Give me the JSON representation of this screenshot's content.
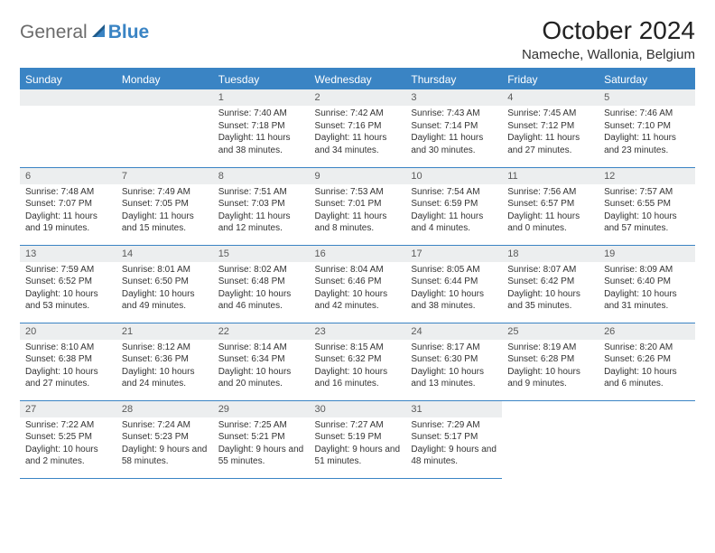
{
  "logo": {
    "general": "General",
    "blue": "Blue"
  },
  "title": "October 2024",
  "location": "Nameche, Wallonia, Belgium",
  "colors": {
    "accent": "#3a84c4",
    "header_text": "#ffffff",
    "daynum_bg": "#eceeef",
    "daynum_text": "#5a5a5a",
    "body_text": "#333333",
    "logo_gray": "#6b6b6b"
  },
  "day_headers": [
    "Sunday",
    "Monday",
    "Tuesday",
    "Wednesday",
    "Thursday",
    "Friday",
    "Saturday"
  ],
  "weeks": [
    [
      {
        "n": "",
        "empty": true
      },
      {
        "n": "",
        "empty": true
      },
      {
        "n": "1",
        "sunrise": "Sunrise: 7:40 AM",
        "sunset": "Sunset: 7:18 PM",
        "daylight": "Daylight: 11 hours and 38 minutes."
      },
      {
        "n": "2",
        "sunrise": "Sunrise: 7:42 AM",
        "sunset": "Sunset: 7:16 PM",
        "daylight": "Daylight: 11 hours and 34 minutes."
      },
      {
        "n": "3",
        "sunrise": "Sunrise: 7:43 AM",
        "sunset": "Sunset: 7:14 PM",
        "daylight": "Daylight: 11 hours and 30 minutes."
      },
      {
        "n": "4",
        "sunrise": "Sunrise: 7:45 AM",
        "sunset": "Sunset: 7:12 PM",
        "daylight": "Daylight: 11 hours and 27 minutes."
      },
      {
        "n": "5",
        "sunrise": "Sunrise: 7:46 AM",
        "sunset": "Sunset: 7:10 PM",
        "daylight": "Daylight: 11 hours and 23 minutes."
      }
    ],
    [
      {
        "n": "6",
        "sunrise": "Sunrise: 7:48 AM",
        "sunset": "Sunset: 7:07 PM",
        "daylight": "Daylight: 11 hours and 19 minutes."
      },
      {
        "n": "7",
        "sunrise": "Sunrise: 7:49 AM",
        "sunset": "Sunset: 7:05 PM",
        "daylight": "Daylight: 11 hours and 15 minutes."
      },
      {
        "n": "8",
        "sunrise": "Sunrise: 7:51 AM",
        "sunset": "Sunset: 7:03 PM",
        "daylight": "Daylight: 11 hours and 12 minutes."
      },
      {
        "n": "9",
        "sunrise": "Sunrise: 7:53 AM",
        "sunset": "Sunset: 7:01 PM",
        "daylight": "Daylight: 11 hours and 8 minutes."
      },
      {
        "n": "10",
        "sunrise": "Sunrise: 7:54 AM",
        "sunset": "Sunset: 6:59 PM",
        "daylight": "Daylight: 11 hours and 4 minutes."
      },
      {
        "n": "11",
        "sunrise": "Sunrise: 7:56 AM",
        "sunset": "Sunset: 6:57 PM",
        "daylight": "Daylight: 11 hours and 0 minutes."
      },
      {
        "n": "12",
        "sunrise": "Sunrise: 7:57 AM",
        "sunset": "Sunset: 6:55 PM",
        "daylight": "Daylight: 10 hours and 57 minutes."
      }
    ],
    [
      {
        "n": "13",
        "sunrise": "Sunrise: 7:59 AM",
        "sunset": "Sunset: 6:52 PM",
        "daylight": "Daylight: 10 hours and 53 minutes."
      },
      {
        "n": "14",
        "sunrise": "Sunrise: 8:01 AM",
        "sunset": "Sunset: 6:50 PM",
        "daylight": "Daylight: 10 hours and 49 minutes."
      },
      {
        "n": "15",
        "sunrise": "Sunrise: 8:02 AM",
        "sunset": "Sunset: 6:48 PM",
        "daylight": "Daylight: 10 hours and 46 minutes."
      },
      {
        "n": "16",
        "sunrise": "Sunrise: 8:04 AM",
        "sunset": "Sunset: 6:46 PM",
        "daylight": "Daylight: 10 hours and 42 minutes."
      },
      {
        "n": "17",
        "sunrise": "Sunrise: 8:05 AM",
        "sunset": "Sunset: 6:44 PM",
        "daylight": "Daylight: 10 hours and 38 minutes."
      },
      {
        "n": "18",
        "sunrise": "Sunrise: 8:07 AM",
        "sunset": "Sunset: 6:42 PM",
        "daylight": "Daylight: 10 hours and 35 minutes."
      },
      {
        "n": "19",
        "sunrise": "Sunrise: 8:09 AM",
        "sunset": "Sunset: 6:40 PM",
        "daylight": "Daylight: 10 hours and 31 minutes."
      }
    ],
    [
      {
        "n": "20",
        "sunrise": "Sunrise: 8:10 AM",
        "sunset": "Sunset: 6:38 PM",
        "daylight": "Daylight: 10 hours and 27 minutes."
      },
      {
        "n": "21",
        "sunrise": "Sunrise: 8:12 AM",
        "sunset": "Sunset: 6:36 PM",
        "daylight": "Daylight: 10 hours and 24 minutes."
      },
      {
        "n": "22",
        "sunrise": "Sunrise: 8:14 AM",
        "sunset": "Sunset: 6:34 PM",
        "daylight": "Daylight: 10 hours and 20 minutes."
      },
      {
        "n": "23",
        "sunrise": "Sunrise: 8:15 AM",
        "sunset": "Sunset: 6:32 PM",
        "daylight": "Daylight: 10 hours and 16 minutes."
      },
      {
        "n": "24",
        "sunrise": "Sunrise: 8:17 AM",
        "sunset": "Sunset: 6:30 PM",
        "daylight": "Daylight: 10 hours and 13 minutes."
      },
      {
        "n": "25",
        "sunrise": "Sunrise: 8:19 AM",
        "sunset": "Sunset: 6:28 PM",
        "daylight": "Daylight: 10 hours and 9 minutes."
      },
      {
        "n": "26",
        "sunrise": "Sunrise: 8:20 AM",
        "sunset": "Sunset: 6:26 PM",
        "daylight": "Daylight: 10 hours and 6 minutes."
      }
    ],
    [
      {
        "n": "27",
        "sunrise": "Sunrise: 7:22 AM",
        "sunset": "Sunset: 5:25 PM",
        "daylight": "Daylight: 10 hours and 2 minutes."
      },
      {
        "n": "28",
        "sunrise": "Sunrise: 7:24 AM",
        "sunset": "Sunset: 5:23 PM",
        "daylight": "Daylight: 9 hours and 58 minutes."
      },
      {
        "n": "29",
        "sunrise": "Sunrise: 7:25 AM",
        "sunset": "Sunset: 5:21 PM",
        "daylight": "Daylight: 9 hours and 55 minutes."
      },
      {
        "n": "30",
        "sunrise": "Sunrise: 7:27 AM",
        "sunset": "Sunset: 5:19 PM",
        "daylight": "Daylight: 9 hours and 51 minutes."
      },
      {
        "n": "31",
        "sunrise": "Sunrise: 7:29 AM",
        "sunset": "Sunset: 5:17 PM",
        "daylight": "Daylight: 9 hours and 48 minutes."
      },
      {
        "n": "",
        "empty": true,
        "noborder": true
      },
      {
        "n": "",
        "empty": true,
        "noborder": true
      }
    ]
  ]
}
